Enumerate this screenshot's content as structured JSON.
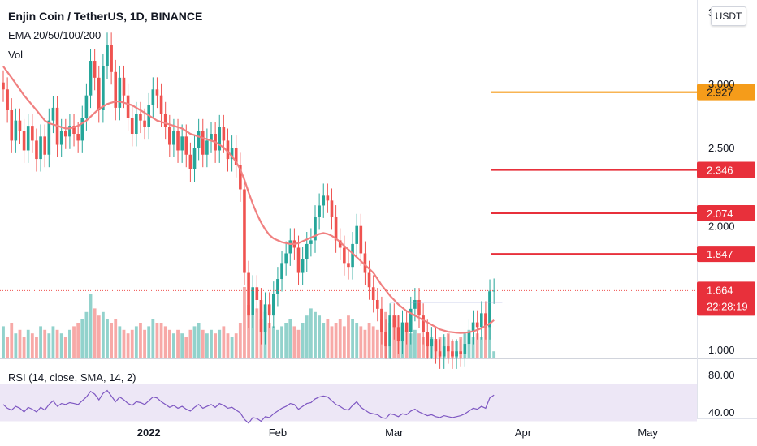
{
  "header": {
    "title": "Enjin Coin / TetherUS, 1D, BINANCE",
    "ema_label": "EMA 20/50/100/200",
    "vol_label": "Vol"
  },
  "rsi_label": "RSI (14, close, SMA, 14, 2)",
  "currency_button": "USDT",
  "colors": {
    "up": "#26a69a",
    "down": "#ef5350",
    "ema": "#f08080",
    "orange_level": "#f59c1a",
    "red_level": "#e8303b",
    "rsi_line": "#7e57c2",
    "rsi_band": "#ede7f6",
    "resistance": "#9fa8da"
  },
  "chart_data": [
    {
      "type": "candlestick",
      "title": "Enjin Coin / TetherUS, 1D, BINANCE",
      "price_axis": {
        "scale": "log",
        "ticks": [
          "3.000",
          "2.500",
          "2.000",
          "1.000"
        ],
        "partial_top_tick": "3"
      },
      "x_axis": {
        "ticks": [
          "2022",
          "Feb",
          "Mar",
          "Apr",
          "May"
        ],
        "dates": [
          "2022-01-01",
          "2022-02-01",
          "2022-03-01",
          "2022-04-01",
          "2022-05-01"
        ]
      },
      "price_levels": [
        {
          "value": 2.927,
          "label": "2.927",
          "color": "orange"
        },
        {
          "value": 2.346,
          "label": "2.346",
          "color": "red"
        },
        {
          "value": 2.074,
          "label": "2.074",
          "color": "red"
        },
        {
          "value": 1.847,
          "label": "1.847",
          "color": "red"
        }
      ],
      "current_price": {
        "value": 1.664,
        "label": "1.664",
        "countdown": "22:28:19"
      },
      "resistance_line": {
        "value": 1.61,
        "from": "2022-02-28",
        "to": "2022-03-27"
      },
      "series": [
        {
          "name": "Price",
          "closes": [
            2.95,
            2.78,
            2.55,
            2.7,
            2.62,
            2.48,
            2.66,
            2.55,
            2.42,
            2.58,
            2.45,
            2.7,
            2.8,
            2.52,
            2.62,
            2.58,
            2.66,
            2.6,
            2.55,
            2.72,
            2.9,
            3.2,
            3.05,
            2.78,
            3.15,
            3.35,
            3.1,
            2.8,
            3.05,
            2.9,
            2.72,
            2.6,
            2.75,
            2.7,
            2.65,
            2.82,
            2.95,
            2.9,
            2.75,
            2.65,
            2.52,
            2.62,
            2.48,
            2.58,
            2.45,
            2.35,
            2.5,
            2.62,
            2.45,
            2.55,
            2.6,
            2.48,
            2.65,
            2.55,
            2.42,
            2.5,
            2.38,
            2.22,
            1.75,
            1.55,
            1.68,
            1.62,
            1.48,
            1.6,
            1.55,
            1.65,
            1.72,
            1.8,
            1.85,
            1.92,
            1.88,
            1.75,
            1.82,
            1.9,
            1.92,
            2.05,
            2.12,
            2.18,
            2.15,
            2.05,
            1.92,
            1.88,
            1.8,
            1.78,
            1.9,
            2.0,
            1.85,
            1.75,
            1.68,
            1.62,
            1.58,
            1.48,
            1.42,
            1.55,
            1.5,
            1.44,
            1.52,
            1.48,
            1.58,
            1.62,
            1.55,
            1.48,
            1.42,
            1.45,
            1.4,
            1.38,
            1.42,
            1.4,
            1.38,
            1.4,
            1.39,
            1.43,
            1.48,
            1.52,
            1.5,
            1.56,
            1.5,
            1.66,
            1.664
          ],
          "ema": [
            3.15,
            3.1,
            3.05,
            3.0,
            2.95,
            2.9,
            2.86,
            2.82,
            2.78,
            2.74,
            2.7,
            2.68,
            2.67,
            2.66,
            2.65,
            2.64,
            2.64,
            2.65,
            2.66,
            2.68,
            2.7,
            2.73,
            2.76,
            2.79,
            2.81,
            2.83,
            2.84,
            2.85,
            2.85,
            2.84,
            2.83,
            2.82,
            2.8,
            2.78,
            2.76,
            2.74,
            2.72,
            2.7,
            2.69,
            2.68,
            2.67,
            2.66,
            2.65,
            2.64,
            2.62,
            2.6,
            2.59,
            2.58,
            2.57,
            2.56,
            2.55,
            2.54,
            2.52,
            2.5,
            2.47,
            2.44,
            2.4,
            2.35,
            2.28,
            2.2,
            2.13,
            2.07,
            2.02,
            1.98,
            1.95,
            1.93,
            1.92,
            1.91,
            1.905,
            1.9,
            1.9,
            1.905,
            1.915,
            1.925,
            1.935,
            1.945,
            1.955,
            1.96,
            1.955,
            1.945,
            1.93,
            1.91,
            1.89,
            1.87,
            1.85,
            1.83,
            1.81,
            1.79,
            1.77,
            1.75,
            1.72,
            1.69,
            1.665,
            1.64,
            1.62,
            1.6,
            1.585,
            1.57,
            1.56,
            1.55,
            1.54,
            1.53,
            1.52,
            1.51,
            1.5,
            1.49,
            1.485,
            1.48,
            1.478,
            1.476,
            1.475,
            1.476,
            1.478,
            1.482,
            1.488,
            1.495,
            1.505,
            1.515,
            1.53
          ]
        },
        {
          "name": "Vol",
          "values": [
            0.45,
            0.3,
            0.5,
            0.35,
            0.4,
            0.3,
            0.4,
            0.35,
            0.3,
            0.45,
            0.4,
            0.35,
            0.45,
            0.4,
            0.35,
            0.3,
            0.4,
            0.45,
            0.5,
            0.55,
            0.65,
            0.9,
            0.7,
            0.6,
            0.65,
            0.55,
            0.5,
            0.55,
            0.45,
            0.4,
            0.35,
            0.4,
            0.45,
            0.5,
            0.4,
            0.45,
            0.55,
            0.5,
            0.5,
            0.45,
            0.4,
            0.35,
            0.4,
            0.35,
            0.3,
            0.4,
            0.45,
            0.5,
            0.4,
            0.35,
            0.4,
            0.35,
            0.4,
            0.45,
            0.35,
            0.3,
            0.35,
            0.5,
            1.0,
            0.75,
            0.6,
            0.7,
            0.55,
            0.65,
            0.5,
            0.45,
            0.4,
            0.45,
            0.5,
            0.55,
            0.45,
            0.4,
            0.5,
            0.6,
            0.7,
            0.65,
            0.6,
            0.5,
            0.55,
            0.45,
            0.5,
            0.55,
            0.45,
            0.6,
            0.55,
            0.5,
            0.45,
            0.4,
            0.5,
            0.45,
            0.4,
            0.55,
            0.65,
            0.5,
            0.55,
            0.6,
            0.45,
            0.4,
            0.35,
            0.4,
            0.35,
            0.3,
            0.35,
            0.3,
            0.25,
            0.3,
            0.3,
            0.35,
            0.25,
            0.25,
            0.3,
            0.35,
            0.4,
            0.3,
            0.35,
            0.3,
            0.55,
            0.95,
            0.1
          ]
        },
        {
          "name": "RSI",
          "values": [
            48,
            44,
            42,
            46,
            44,
            40,
            45,
            43,
            40,
            45,
            42,
            48,
            52,
            46,
            49,
            48,
            50,
            49,
            48,
            52,
            56,
            62,
            59,
            53,
            60,
            63,
            57,
            51,
            56,
            53,
            49,
            47,
            51,
            50,
            48,
            52,
            56,
            55,
            51,
            48,
            45,
            47,
            44,
            46,
            43,
            41,
            45,
            48,
            44,
            46,
            48,
            45,
            49,
            47,
            44,
            45,
            42,
            39,
            32,
            28,
            34,
            33,
            30,
            35,
            34,
            38,
            41,
            44,
            46,
            49,
            48,
            43,
            46,
            49,
            50,
            54,
            56,
            57,
            56,
            52,
            48,
            46,
            43,
            42,
            47,
            51,
            45,
            42,
            39,
            38,
            37,
            34,
            33,
            38,
            37,
            35,
            38,
            37,
            41,
            43,
            40,
            38,
            36,
            37,
            35,
            34,
            36,
            35,
            34,
            35,
            36,
            38,
            41,
            44,
            43,
            46,
            44,
            55,
            58
          ]
        }
      ],
      "rsi_axis": {
        "ticks": [
          "80.00",
          "40.00"
        ],
        "band": [
          30,
          70
        ]
      }
    }
  ]
}
